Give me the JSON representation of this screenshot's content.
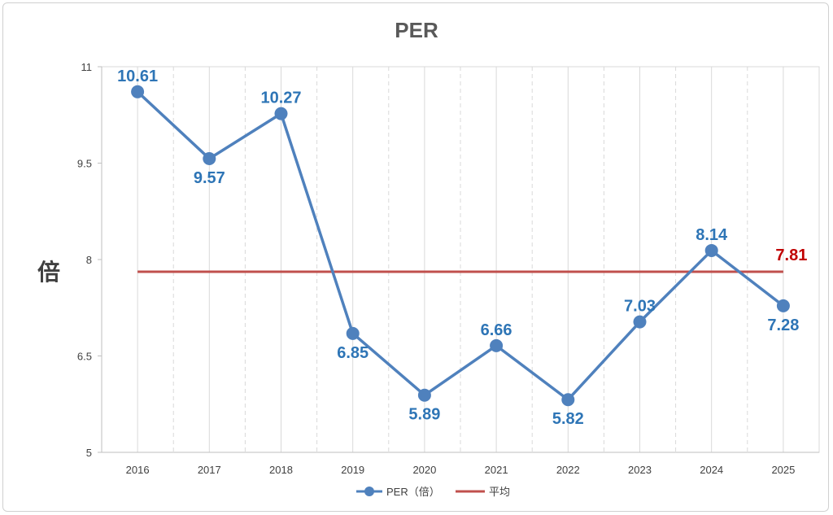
{
  "chart_data": {
    "type": "line",
    "title": "PER",
    "ylabel": "倍",
    "xlabel": "",
    "categories": [
      "2016",
      "2017",
      "2018",
      "2019",
      "2020",
      "2021",
      "2022",
      "2023",
      "2024",
      "2025"
    ],
    "series": [
      {
        "name": "PER（倍）",
        "values": [
          10.61,
          9.57,
          10.27,
          6.85,
          5.89,
          6.66,
          5.82,
          7.03,
          8.14,
          7.28
        ],
        "data_labels": [
          "10.61",
          "9.57",
          "10.27",
          "6.85",
          "5.89",
          "6.66",
          "5.82",
          "7.03",
          "8.14",
          "7.28"
        ],
        "color": "#4f81bd"
      },
      {
        "name": "平均",
        "values": [
          7.81,
          7.81,
          7.81,
          7.81,
          7.81,
          7.81,
          7.81,
          7.81,
          7.81,
          7.81
        ],
        "end_label": "7.81",
        "color": "#c0504d"
      }
    ],
    "ylim": [
      5,
      11
    ],
    "yticks": [
      "5",
      "6.5",
      "8",
      "9.5",
      "11"
    ],
    "ytick_values": [
      5,
      6.5,
      8,
      9.5,
      11
    ],
    "grid": "vertical dashed",
    "legend": "bottom-center",
    "colors": {
      "label_blue": "#2e75b6",
      "label_red": "#c00000",
      "grid": "#d9d9d9"
    }
  }
}
